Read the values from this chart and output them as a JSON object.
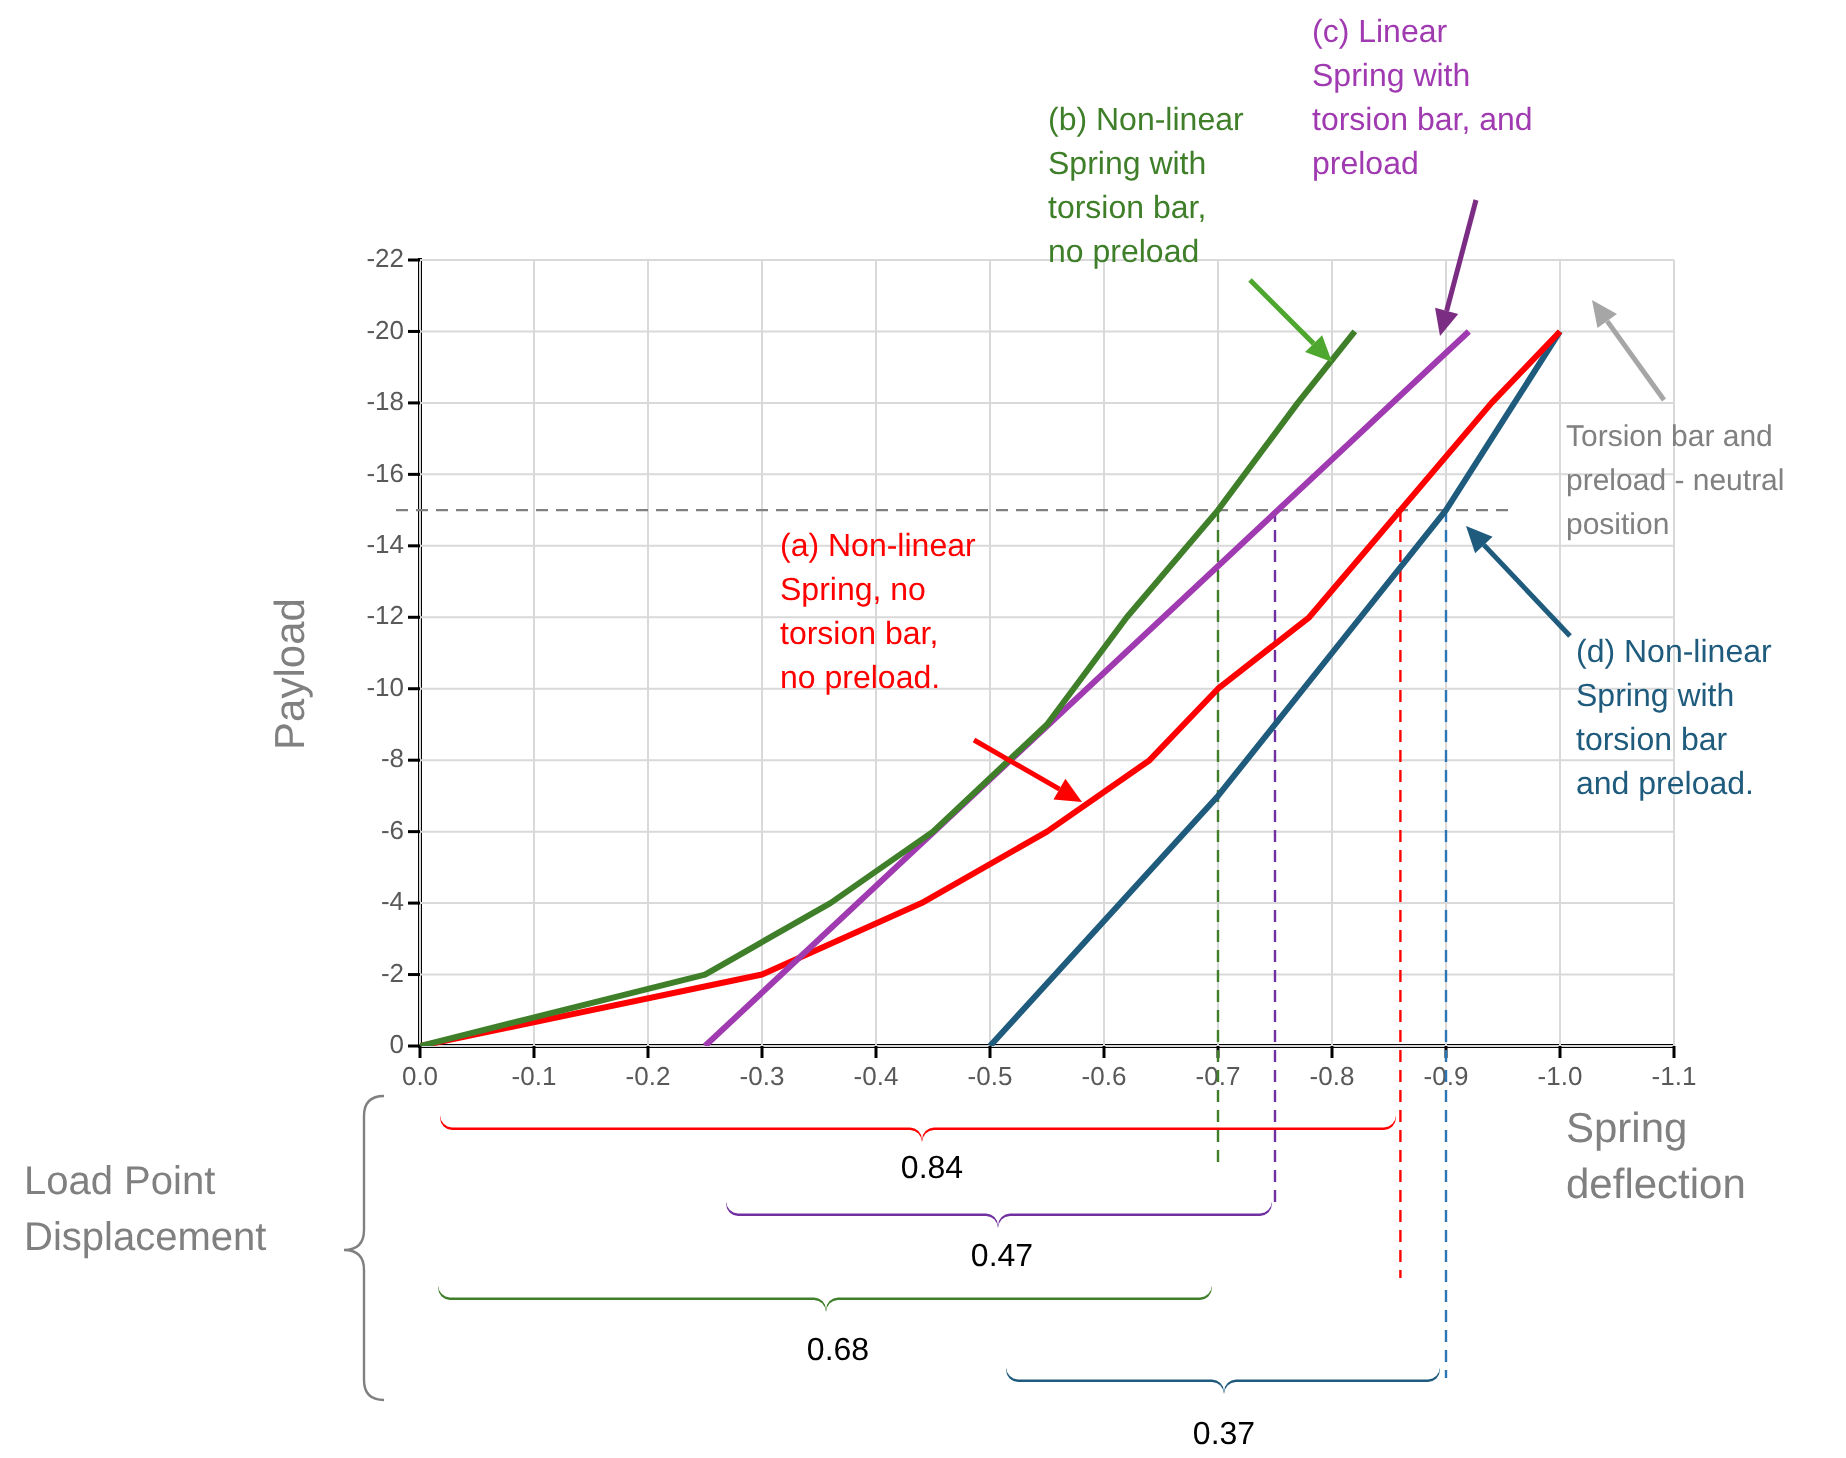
{
  "chart_data": {
    "type": "line",
    "xlabel": "Spring deflection",
    "ylabel": "Payload",
    "xlim": [
      0,
      -1.1
    ],
    "ylim": [
      0,
      -22
    ],
    "xticks": [
      {
        "value": 0,
        "label": "0.0"
      },
      -0.1,
      -0.2,
      -0.3,
      -0.4,
      -0.5,
      -0.6,
      -0.7,
      -0.8,
      -0.9,
      {
        "value": -1,
        "label": "-1.0"
      },
      -1.1
    ],
    "yticks": [
      0,
      -2,
      -4,
      -6,
      -8,
      -10,
      -12,
      -14,
      -16,
      -18,
      -20,
      -22
    ],
    "grid": true,
    "legend": false,
    "marker": "none",
    "line_style": "solid",
    "series": [
      {
        "name": "(b) Non-linear Spring with torsion bar, no preload",
        "color": "#3f7f2a",
        "x": [
          0,
          -0.25,
          -0.36,
          -0.45,
          -0.55,
          -0.62,
          -0.7,
          -0.77,
          -0.82
        ],
        "values": [
          0,
          -2,
          -4,
          -6,
          -9,
          -12,
          -15,
          -18,
          -20
        ]
      },
      {
        "name": "(c) Linear Spring with torsion bar, and preload",
        "color": "#a03ab0",
        "x": [
          -0.25,
          -0.92
        ],
        "values": [
          0,
          -20
        ]
      },
      {
        "name": "(a) Non-linear Spring, no torsion bar, no preload.",
        "color": "#ff0000",
        "x": [
          0,
          -0.3,
          -0.44,
          -0.55,
          -0.64,
          -0.7,
          -0.78,
          -0.86,
          -0.94,
          -1.0
        ],
        "values": [
          0,
          -2,
          -4,
          -6,
          -8,
          -10,
          -12,
          -15,
          -18,
          -20
        ]
      },
      {
        "name": "(d) Non-linear Spring with torsion bar and preload.",
        "color": "#1f5b7d",
        "x": [
          -0.5,
          -0.6,
          -0.7,
          -0.8,
          -0.9,
          -1.0
        ],
        "values": [
          0,
          -3.5,
          -7,
          -11,
          -15,
          -20
        ]
      }
    ],
    "ref_lines": [
      {
        "axis": "y",
        "value": -15,
        "color": "#808080",
        "line_style": "dashed"
      },
      {
        "axis": "x",
        "value": -0.7,
        "color": "#3f7f2a",
        "line_style": "dashed"
      },
      {
        "axis": "x",
        "value": -0.75,
        "color": "#7030a0",
        "line_style": "dashed"
      },
      {
        "axis": "x",
        "value": -0.86,
        "color": "#ff0000",
        "line_style": "dashed"
      },
      {
        "axis": "x",
        "value": -0.9,
        "color": "#2e75b6",
        "line_style": "dashed"
      }
    ],
    "annotations": [
      "Torsion bar and preload - neutral position",
      "0.84",
      "0.47",
      "0.68",
      "0.37",
      "Load Point Displacement"
    ]
  }
}
